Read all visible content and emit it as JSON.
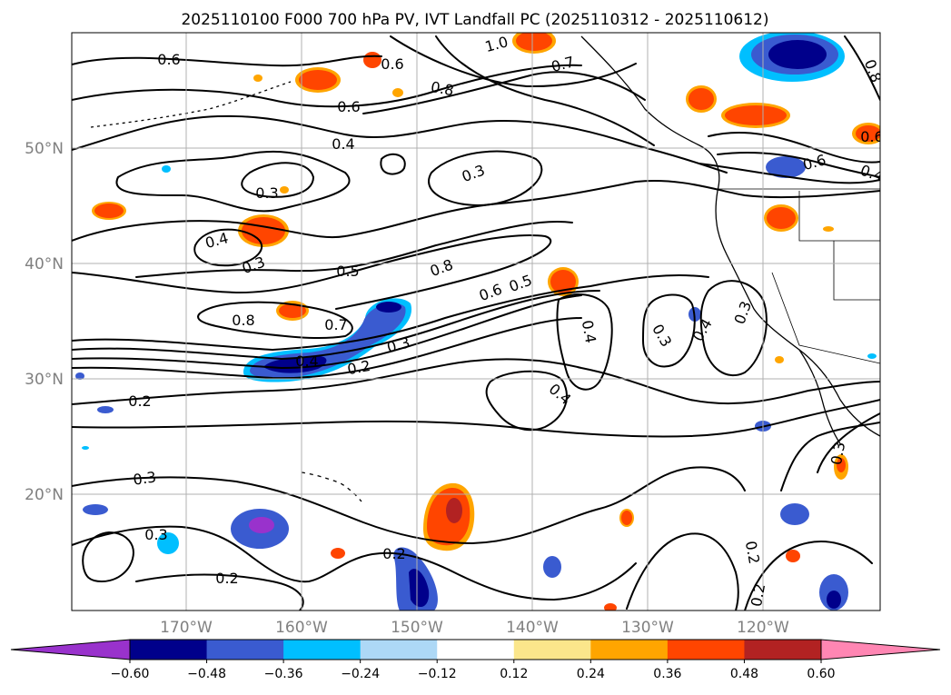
{
  "title": "2025110100 F000 700 hPa PV, IVT Landfall PC (2025110312 - 2025110612)",
  "latitude_labels": [
    "50°N",
    "40°N",
    "30°N",
    "20°N"
  ],
  "longitude_labels": [
    "170°W",
    "160°W",
    "150°W",
    "140°W",
    "130°W",
    "120°W"
  ],
  "colorbar": {
    "colors": [
      "#9932cc",
      "#00008b",
      "#3a5bd0",
      "#00bfff",
      "#add8f6",
      "#ffffff",
      "#fbe68b",
      "#ffa500",
      "#ff4500",
      "#b22222",
      "#ff86b3"
    ],
    "tick_labels": [
      "−0.60",
      "−0.48",
      "−0.36",
      "−0.24",
      "−0.12",
      "0.12",
      "0.24",
      "0.36",
      "0.48",
      "0.60"
    ]
  },
  "contour_labels": [
    "0.6",
    "1.0",
    "0.6",
    "0.7",
    "0.8",
    "0.6",
    "0.4",
    "0.3",
    "0.3",
    "0.4",
    "0.3",
    "0.5",
    "0.8",
    "0.6",
    "0.5",
    "0.8",
    "0.7",
    "0.4",
    "0.3",
    "0.2",
    "0.2",
    "0.4",
    "0.4",
    "0.3",
    "0.4",
    "0.3",
    "0.6",
    "0.4",
    "0.3",
    "0.3",
    "0.2",
    "0.2",
    "0.2",
    "0.3",
    "0.2",
    "0.8",
    "0.6"
  ],
  "colors": {
    "contour": "#000000",
    "grid": "#b0b0b0",
    "tick_text": "#808080"
  }
}
